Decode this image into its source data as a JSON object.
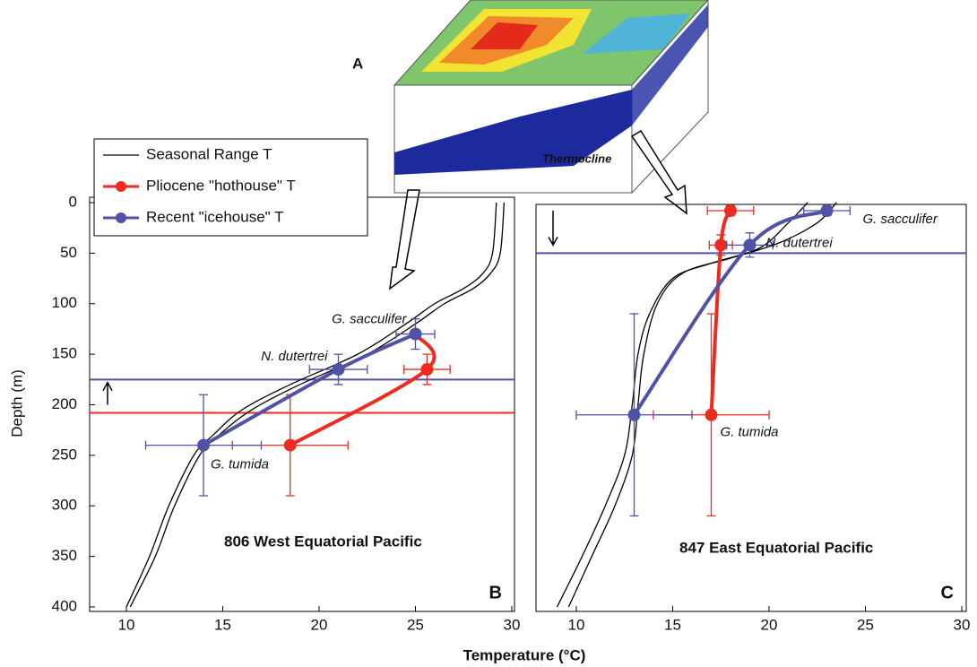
{
  "diagram": {
    "label": "A",
    "annotation": "Thermocline"
  },
  "chart_data": [
    {
      "type": "profile",
      "x_label": "Temperature (°C)",
      "y_label": "Depth (m)",
      "title": "806 West Equatorial Pacific",
      "panel": "B",
      "legend": "upper left",
      "xlim": [
        8,
        30
      ],
      "xticks": [
        10,
        15,
        20,
        25,
        30
      ],
      "ylim": [
        0,
        400
      ],
      "yticks": [
        0,
        50,
        100,
        150,
        200,
        250,
        300,
        350,
        400
      ],
      "y_inverted": true,
      "species": [
        "G. sacculifer",
        "N. dutertrei",
        "G. tumida"
      ],
      "series": [
        {
          "name": "Seasonal Range T",
          "color": "#000000",
          "curves": [
            {
              "x": [
                29.2,
                29.0,
                28.5,
                27.5,
                26.0,
                24.5,
                22.0,
                18.5,
                16.0,
                14.5,
                13.5,
                12.2,
                11.2,
                10.0
              ],
              "y": [
                0,
                50,
                70,
                85,
                100,
                120,
                150,
                180,
                205,
                230,
                250,
                300,
                350,
                400
              ]
            },
            {
              "x": [
                29.6,
                29.4,
                28.9,
                28.0,
                26.5,
                25.0,
                22.5,
                19.0,
                16.5,
                14.8,
                13.8,
                12.5,
                11.5,
                10.2
              ],
              "y": [
                0,
                50,
                70,
                85,
                100,
                120,
                150,
                180,
                205,
                230,
                250,
                300,
                350,
                400
              ]
            }
          ]
        },
        {
          "name": "Pliocene \"hothouse\" T",
          "color": "#ee2b1e",
          "x": [
            25.0,
            25.6,
            18.5
          ],
          "y": [
            130,
            165,
            240
          ],
          "xerr": [
            null,
            1.2,
            3.0
          ],
          "yerr": [
            null,
            15,
            50
          ]
        },
        {
          "name": "Recent \"icehouse\" T",
          "color": "#4f52a6",
          "x": [
            25.0,
            21.0,
            14.0
          ],
          "y": [
            130,
            165,
            240
          ],
          "xerr": [
            1.0,
            1.5,
            3.0
          ],
          "yerr": [
            15,
            15,
            50
          ]
        }
      ],
      "hlines": [
        {
          "value": 175,
          "color": "#4f52a6"
        },
        {
          "value": 208,
          "color": "#ee2b1e"
        }
      ]
    },
    {
      "type": "profile",
      "title": "847 East Equatorial Pacific",
      "panel": "C",
      "xlim": [
        8,
        30
      ],
      "xticks": [
        10,
        15,
        20,
        25,
        30
      ],
      "ylim": [
        0,
        400
      ],
      "y_inverted": true,
      "species": [
        "G. sacculifer",
        "N. dutertrei",
        "G. tumida"
      ],
      "series": [
        {
          "name": "Seasonal Range T",
          "color": "#000000",
          "curves": [
            {
              "x": [
                22.0,
                21.0,
                19.5,
                17.0,
                15.0,
                13.8,
                13.2,
                12.9,
                12.5,
                11.5,
                10.3,
                9.0
              ],
              "y": [
                0,
                20,
                45,
                60,
                75,
                110,
                150,
                200,
                250,
                300,
                350,
                400
              ]
            },
            {
              "x": [
                23.5,
                22.5,
                20.5,
                18.0,
                15.5,
                14.2,
                13.5,
                13.2,
                12.9,
                12.0,
                10.8,
                9.6
              ],
              "y": [
                0,
                20,
                40,
                55,
                70,
                100,
                150,
                200,
                250,
                300,
                350,
                400
              ]
            }
          ]
        },
        {
          "name": "Pliocene \"hothouse\" T",
          "color": "#ee2b1e",
          "x": [
            18.0,
            17.5,
            17.0
          ],
          "y": [
            8,
            42,
            210
          ],
          "xerr": [
            1.2,
            0.6,
            3.0
          ],
          "yerr": [
            5,
            10,
            100
          ]
        },
        {
          "name": "Recent \"icehouse\" T",
          "color": "#4f52a6",
          "x": [
            23.0,
            19.0,
            13.0
          ],
          "y": [
            8,
            42,
            210
          ],
          "xerr": [
            1.2,
            1.2,
            3.0
          ],
          "yerr": [
            5,
            12,
            100
          ]
        }
      ],
      "hlines": [
        {
          "value": 50,
          "color": "#4f52a6"
        }
      ]
    }
  ]
}
